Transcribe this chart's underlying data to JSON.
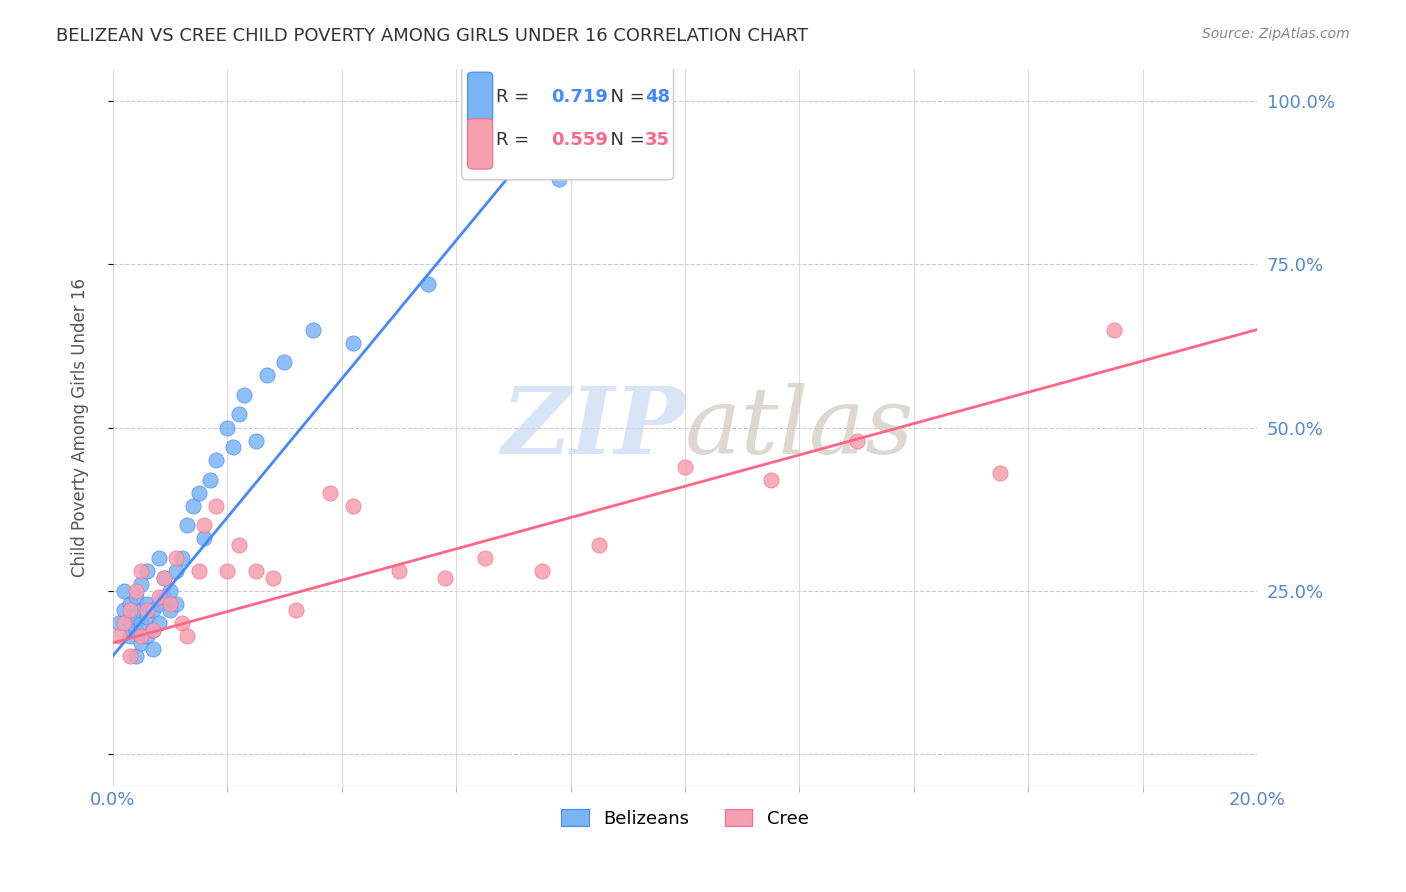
{
  "title": "BELIZEAN VS CREE CHILD POVERTY AMONG GIRLS UNDER 16 CORRELATION CHART",
  "source": "Source: ZipAtlas.com",
  "ylabel": "Child Poverty Among Girls Under 16",
  "xlim": [
    0.0,
    0.2
  ],
  "ylim": [
    -0.05,
    1.05
  ],
  "ytick_positions": [
    0.0,
    0.25,
    0.5,
    0.75,
    1.0
  ],
  "ytick_labels": [
    "",
    "25.0%",
    "50.0%",
    "75.0%",
    "100.0%"
  ],
  "grid_color": "#cccccc",
  "background_color": "#ffffff",
  "belizean_color": "#7ab4f5",
  "cree_color": "#f5a0b0",
  "line_blue": "#4488ff",
  "line_pink": "#ff6688",
  "legend_r_blue": "0.719",
  "legend_n_blue": "48",
  "legend_r_pink": "0.559",
  "legend_n_pink": "35",
  "watermark_zip_color": "#c8daf5",
  "watermark_atlas_color": "#d0c8c0",
  "title_color": "#333333",
  "axis_label_color": "#555555",
  "tick_label_color": "#5588cc",
  "belizean_x": [
    0.001,
    0.002,
    0.002,
    0.003,
    0.003,
    0.003,
    0.004,
    0.004,
    0.004,
    0.004,
    0.005,
    0.005,
    0.005,
    0.005,
    0.006,
    0.006,
    0.006,
    0.006,
    0.007,
    0.007,
    0.007,
    0.008,
    0.008,
    0.008,
    0.009,
    0.009,
    0.01,
    0.01,
    0.011,
    0.011,
    0.012,
    0.013,
    0.014,
    0.015,
    0.016,
    0.017,
    0.018,
    0.02,
    0.021,
    0.022,
    0.023,
    0.025,
    0.027,
    0.03,
    0.035,
    0.042,
    0.055,
    0.078
  ],
  "belizean_y": [
    0.2,
    0.22,
    0.25,
    0.18,
    0.2,
    0.23,
    0.15,
    0.19,
    0.21,
    0.24,
    0.17,
    0.2,
    0.22,
    0.26,
    0.18,
    0.21,
    0.23,
    0.28,
    0.16,
    0.19,
    0.22,
    0.2,
    0.23,
    0.3,
    0.24,
    0.27,
    0.22,
    0.25,
    0.23,
    0.28,
    0.3,
    0.35,
    0.38,
    0.4,
    0.33,
    0.42,
    0.45,
    0.5,
    0.47,
    0.52,
    0.55,
    0.48,
    0.58,
    0.6,
    0.65,
    0.63,
    0.72,
    0.88
  ],
  "cree_x": [
    0.001,
    0.002,
    0.003,
    0.003,
    0.004,
    0.005,
    0.005,
    0.006,
    0.007,
    0.008,
    0.009,
    0.01,
    0.011,
    0.012,
    0.013,
    0.015,
    0.016,
    0.018,
    0.02,
    0.022,
    0.025,
    0.028,
    0.032,
    0.038,
    0.042,
    0.05,
    0.058,
    0.065,
    0.075,
    0.085,
    0.1,
    0.115,
    0.13,
    0.155,
    0.175
  ],
  "cree_y": [
    0.18,
    0.2,
    0.15,
    0.22,
    0.25,
    0.18,
    0.28,
    0.22,
    0.19,
    0.24,
    0.27,
    0.23,
    0.3,
    0.2,
    0.18,
    0.28,
    0.35,
    0.38,
    0.28,
    0.32,
    0.28,
    0.27,
    0.22,
    0.4,
    0.38,
    0.28,
    0.27,
    0.3,
    0.28,
    0.32,
    0.44,
    0.42,
    0.48,
    0.43,
    0.65
  ],
  "blue_line_x": [
    0.0,
    0.082
  ],
  "blue_line_y": [
    0.15,
    1.02
  ],
  "pink_line_x": [
    0.0,
    0.2
  ],
  "pink_line_y": [
    0.17,
    0.65
  ]
}
